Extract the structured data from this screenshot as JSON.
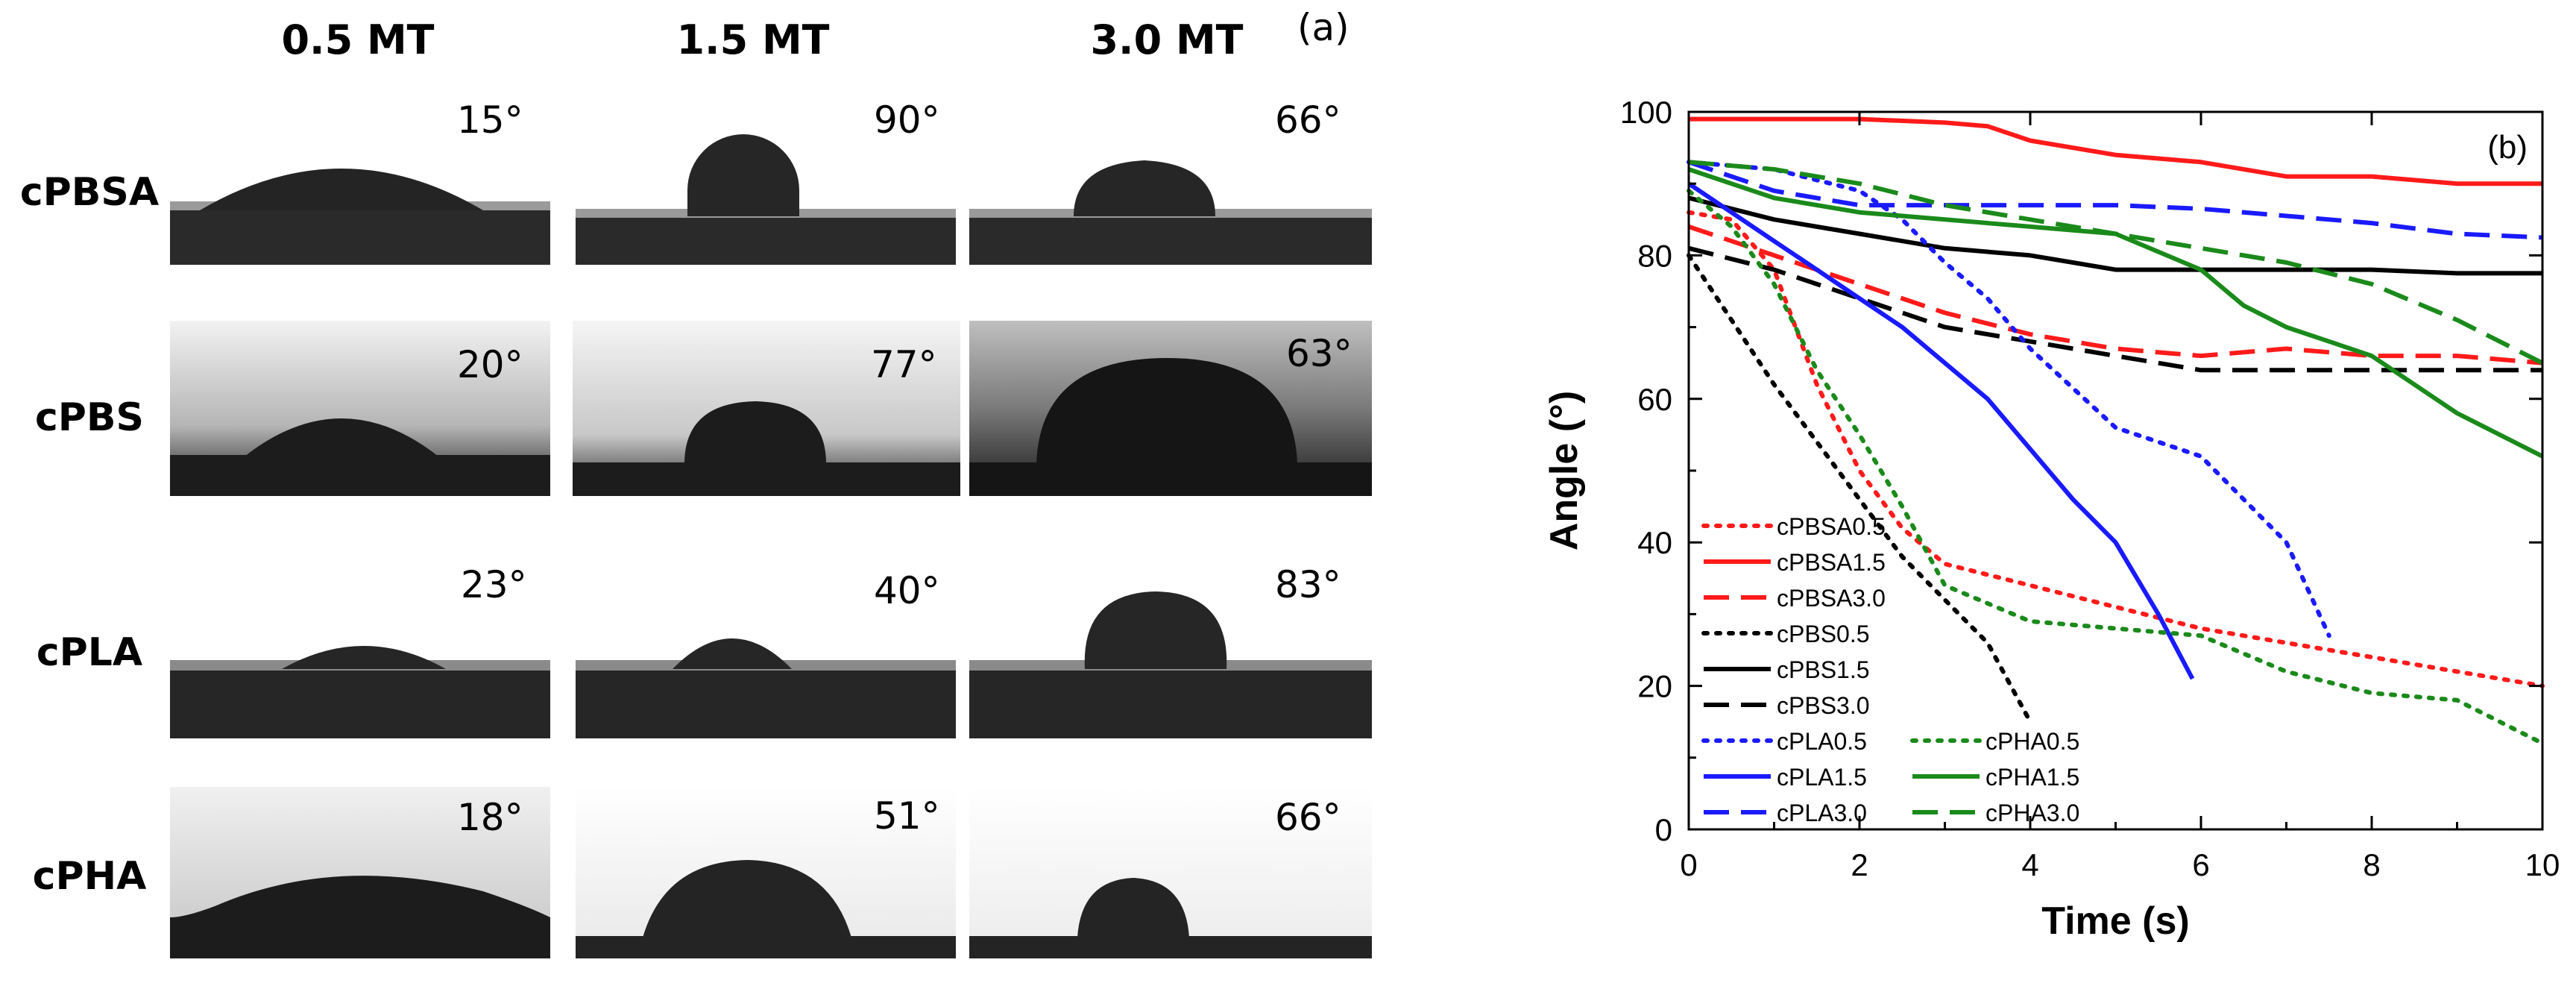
{
  "panel_a": {
    "label": "(a)",
    "columns": [
      "0.5 MT",
      "1.5 MT",
      "3.0 MT"
    ],
    "rows": [
      {
        "name": "cPBSA",
        "angles": [
          "15°",
          "90°",
          "66°"
        ]
      },
      {
        "name": "cPBS",
        "angles": [
          "20°",
          "77°",
          "63°"
        ]
      },
      {
        "name": "cPLA",
        "angles": [
          "23°",
          "40°",
          "83°"
        ]
      },
      {
        "name": "cPHA",
        "angles": [
          "18°",
          "51°",
          "66°"
        ]
      }
    ]
  },
  "colors": {
    "red": "#ff1a1a",
    "black": "#000000",
    "blue": "#1a1aff",
    "green": "#1a8a1a"
  },
  "chart_data": {
    "type": "line",
    "panel_label": "(b)",
    "xlabel": "Time (s)",
    "ylabel": "Angle (°)",
    "xlim": [
      0,
      10
    ],
    "ylim": [
      0,
      100
    ],
    "xticks": [
      0,
      2,
      4,
      6,
      8,
      10
    ],
    "yticks": [
      0,
      20,
      40,
      60,
      80,
      100
    ],
    "series": [
      {
        "name": "cPBSA0.5",
        "color": "#ff1a1a",
        "style": "dotted",
        "x": [
          0,
          0.5,
          1,
          1.5,
          2,
          2.5,
          3,
          4,
          5,
          6,
          7,
          8,
          9,
          10
        ],
        "y": [
          86,
          85,
          78,
          62,
          50,
          42,
          37,
          34,
          31,
          28,
          26,
          24,
          22,
          20
        ]
      },
      {
        "name": "cPBSA1.5",
        "color": "#ff1a1a",
        "style": "solid",
        "x": [
          0,
          1,
          2,
          3,
          3.5,
          4,
          5,
          6,
          7,
          8,
          9,
          10
        ],
        "y": [
          99,
          99,
          99,
          98.5,
          98,
          96,
          94,
          93,
          91,
          91,
          90,
          90
        ]
      },
      {
        "name": "cPBSA3.0",
        "color": "#ff1a1a",
        "style": "dashed",
        "x": [
          0,
          1,
          2,
          3,
          4,
          5,
          6,
          7,
          8,
          9,
          10
        ],
        "y": [
          84,
          80,
          76,
          72,
          69,
          67,
          66,
          67,
          66,
          66,
          65
        ]
      },
      {
        "name": "cPBS0.5",
        "color": "#000000",
        "style": "dotted",
        "x": [
          0,
          0.5,
          1,
          1.5,
          2,
          2.5,
          3,
          3.5,
          4
        ],
        "y": [
          80,
          71,
          62,
          54,
          46,
          38,
          32,
          26,
          15
        ]
      },
      {
        "name": "cPBS1.5",
        "color": "#000000",
        "style": "solid",
        "x": [
          0,
          1,
          2,
          3,
          4,
          5,
          6,
          7,
          8,
          9,
          10
        ],
        "y": [
          88,
          85,
          83,
          81,
          80,
          78,
          78,
          78,
          78,
          77.5,
          77.5
        ]
      },
      {
        "name": "cPBS3.0",
        "color": "#000000",
        "style": "dashed",
        "x": [
          0,
          1,
          2,
          3,
          4,
          5,
          6,
          7,
          8,
          9,
          10
        ],
        "y": [
          81,
          78,
          74,
          70,
          68,
          66,
          64,
          64,
          64,
          64,
          64
        ]
      },
      {
        "name": "cPLA0.5",
        "color": "#1a1aff",
        "style": "dotted",
        "x": [
          0,
          1,
          2,
          2.5,
          3,
          3.5,
          4,
          5,
          6,
          7,
          7.5
        ],
        "y": [
          93,
          92,
          89,
          85,
          79,
          74,
          67,
          56,
          52,
          40,
          27
        ]
      },
      {
        "name": "cPLA1.5",
        "color": "#1a1aff",
        "style": "solid",
        "x": [
          0,
          0.5,
          1,
          1.5,
          2,
          2.5,
          3,
          3.5,
          4,
          4.5,
          5,
          5.5,
          5.9
        ],
        "y": [
          90,
          86,
          82,
          78,
          74,
          70,
          65,
          60,
          53,
          46,
          40,
          30,
          21
        ]
      },
      {
        "name": "cPLA3.0",
        "color": "#1a1aff",
        "style": "dashed",
        "x": [
          0,
          1,
          2,
          3,
          4,
          5,
          6,
          7,
          8,
          9,
          10
        ],
        "y": [
          93,
          89,
          87,
          87,
          87,
          87,
          86.5,
          85.5,
          84.5,
          83,
          82.5
        ]
      },
      {
        "name": "cPHA0.5",
        "color": "#1a8a1a",
        "style": "dotted",
        "x": [
          0,
          0.5,
          1,
          1.5,
          2,
          2.5,
          3,
          4,
          5,
          6,
          7,
          8,
          9,
          10
        ],
        "y": [
          89,
          84,
          76,
          64,
          55,
          45,
          34,
          29,
          28,
          27,
          22,
          19,
          18,
          12
        ]
      },
      {
        "name": "cPHA1.5",
        "color": "#1a8a1a",
        "style": "solid",
        "x": [
          0,
          1,
          2,
          3,
          4,
          5,
          6,
          6.5,
          7,
          7.5,
          8,
          9,
          10
        ],
        "y": [
          92,
          88,
          86,
          85,
          84,
          83,
          78,
          73,
          70,
          68,
          66,
          58,
          52
        ]
      },
      {
        "name": "cPHA3.0",
        "color": "#1a8a1a",
        "style": "dashed",
        "x": [
          0,
          1,
          2,
          3,
          4,
          5,
          6,
          7,
          8,
          9,
          10
        ],
        "y": [
          93,
          92,
          90,
          87,
          85,
          83,
          81,
          79,
          76,
          71,
          65
        ]
      }
    ],
    "legend_placement": "lower-left"
  }
}
